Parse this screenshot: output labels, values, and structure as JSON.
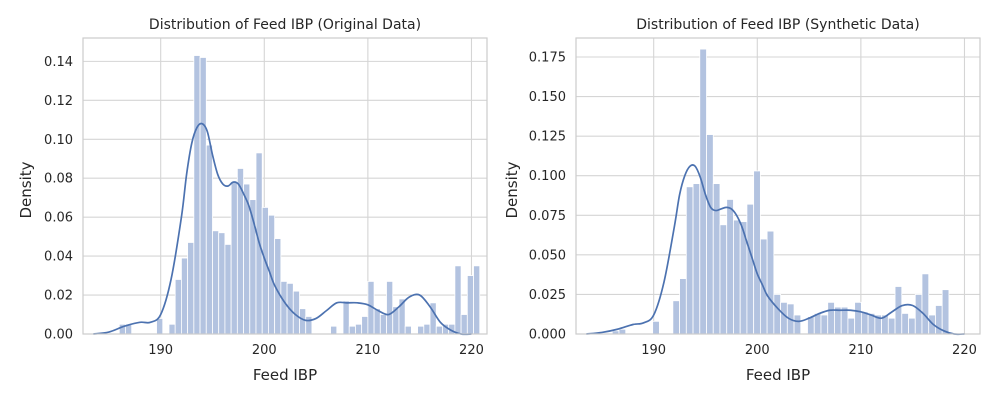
{
  "figure": {
    "background": "#ffffff"
  },
  "chart_data": [
    {
      "type": "bar",
      "title": "Distribution of Feed IBP (Original Data)",
      "xlabel": "Feed IBP",
      "ylabel": "Density",
      "xlim": [
        182.5,
        221.5
      ],
      "ylim": [
        0,
        0.152
      ],
      "xticks": [
        190,
        200,
        210,
        220
      ],
      "yticks": [
        0.0,
        0.02,
        0.04,
        0.06,
        0.08,
        0.1,
        0.12,
        0.14
      ],
      "ytick_labels": [
        "0.00",
        "0.02",
        "0.04",
        "0.06",
        "0.08",
        "0.10",
        "0.12",
        "0.14"
      ],
      "grid": true,
      "bar_color": "#b3c3e0",
      "line_color": "#4c72b0",
      "bins": {
        "edges_start": 186.0,
        "bin_width": 0.6,
        "values": [
          0.005,
          0.005,
          0.0,
          0.0,
          0.0,
          0.0,
          0.008,
          0.0,
          0.005,
          0.028,
          0.039,
          0.047,
          0.143,
          0.142,
          0.097,
          0.053,
          0.052,
          0.046,
          0.078,
          0.085,
          0.077,
          0.069,
          0.093,
          0.065,
          0.061,
          0.049,
          0.027,
          0.026,
          0.022,
          0.013,
          0.009,
          0.0,
          0.0,
          0.0,
          0.004,
          0.0,
          0.017,
          0.004,
          0.005,
          0.009,
          0.027,
          0.013,
          0.01,
          0.027,
          0.014,
          0.018,
          0.004,
          0.0,
          0.004,
          0.005,
          0.016,
          0.004,
          0.005,
          0.005,
          0.035,
          0.01,
          0.03,
          0.035
        ]
      },
      "kde": {
        "x": [
          183.5,
          185,
          186.5,
          188,
          189,
          190,
          191,
          192,
          192.5,
          193,
          193.5,
          194,
          194.5,
          195,
          195.5,
          196,
          196.5,
          197,
          197.5,
          198,
          198.5,
          199,
          199.5,
          200,
          200.5,
          201,
          202,
          203,
          204,
          205,
          206,
          207,
          208,
          209,
          210,
          211,
          212,
          213,
          214,
          215,
          216,
          217,
          218,
          219,
          220
        ],
        "y": [
          0.0,
          0.001,
          0.004,
          0.006,
          0.006,
          0.01,
          0.028,
          0.06,
          0.082,
          0.098,
          0.106,
          0.108,
          0.104,
          0.092,
          0.082,
          0.077,
          0.076,
          0.078,
          0.077,
          0.072,
          0.066,
          0.057,
          0.047,
          0.039,
          0.032,
          0.025,
          0.016,
          0.01,
          0.007,
          0.008,
          0.012,
          0.016,
          0.016,
          0.016,
          0.015,
          0.012,
          0.01,
          0.014,
          0.019,
          0.02,
          0.014,
          0.006,
          0.002,
          0.0,
          0.0
        ]
      }
    },
    {
      "type": "bar",
      "title": "Distribution of Feed IBP (Synthetic Data)",
      "xlabel": "Feed IBP",
      "ylabel": "Density",
      "xlim": [
        182.5,
        221.5
      ],
      "ylim": [
        0,
        0.187
      ],
      "xticks": [
        190,
        200,
        210,
        220
      ],
      "yticks": [
        0.0,
        0.025,
        0.05,
        0.075,
        0.1,
        0.125,
        0.15,
        0.175
      ],
      "ytick_labels": [
        "0.000",
        "0.025",
        "0.050",
        "0.075",
        "0.100",
        "0.125",
        "0.150",
        "0.175"
      ],
      "grid": true,
      "bar_color": "#b3c3e0",
      "line_color": "#4c72b0",
      "bins": {
        "edges_start": 186.0,
        "bin_width": 0.65,
        "values": [
          0.002,
          0.003,
          0.0,
          0.0,
          0.0,
          0.0,
          0.008,
          0.0,
          0.0,
          0.021,
          0.035,
          0.093,
          0.095,
          0.18,
          0.126,
          0.095,
          0.069,
          0.085,
          0.072,
          0.071,
          0.082,
          0.103,
          0.06,
          0.065,
          0.025,
          0.02,
          0.019,
          0.012,
          0.0,
          0.011,
          0.013,
          0.012,
          0.02,
          0.017,
          0.017,
          0.01,
          0.02,
          0.014,
          0.013,
          0.012,
          0.012,
          0.01,
          0.03,
          0.013,
          0.01,
          0.025,
          0.038,
          0.012,
          0.018,
          0.028
        ]
      },
      "kde": {
        "x": [
          183.5,
          185,
          186.5,
          188,
          189,
          190,
          191,
          192,
          192.5,
          193,
          193.5,
          194,
          194.5,
          195,
          195.5,
          196,
          196.5,
          197,
          197.5,
          198,
          198.5,
          199,
          199.5,
          200,
          200.5,
          201,
          202,
          203,
          204,
          205,
          206,
          207,
          208,
          209,
          210,
          211,
          212,
          213,
          214,
          215,
          216,
          217,
          218,
          219,
          220
        ],
        "y": [
          0.0,
          0.001,
          0.003,
          0.006,
          0.007,
          0.012,
          0.033,
          0.068,
          0.088,
          0.1,
          0.106,
          0.106,
          0.099,
          0.088,
          0.08,
          0.078,
          0.079,
          0.08,
          0.079,
          0.075,
          0.068,
          0.058,
          0.048,
          0.038,
          0.031,
          0.024,
          0.016,
          0.01,
          0.008,
          0.01,
          0.013,
          0.015,
          0.015,
          0.015,
          0.014,
          0.012,
          0.01,
          0.014,
          0.018,
          0.018,
          0.013,
          0.006,
          0.002,
          0.0,
          0.0
        ]
      }
    }
  ]
}
